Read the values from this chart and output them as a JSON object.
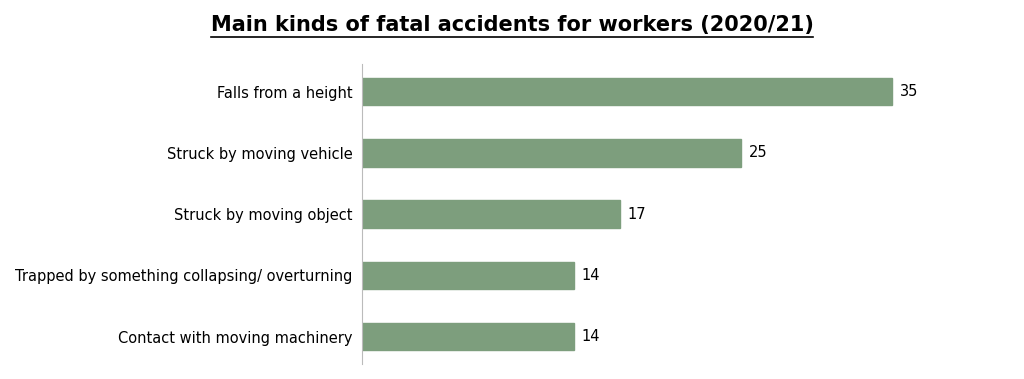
{
  "title": "Main kinds of fatal accidents for workers (2020/21)",
  "categories": [
    "Contact with moving machinery",
    "Trapped by something collapsing/ overturning",
    "Struck by moving object",
    "Struck by moving vehicle",
    "Falls from a height"
  ],
  "values": [
    14,
    14,
    17,
    25,
    35
  ],
  "bar_color": "#7d9e7d",
  "label_color": "#000000",
  "title_color": "#000000",
  "background_color": "#ffffff",
  "xlim": [
    0,
    40
  ],
  "title_fontsize": 15,
  "label_fontsize": 10.5,
  "value_fontsize": 10.5,
  "bar_height": 0.45
}
